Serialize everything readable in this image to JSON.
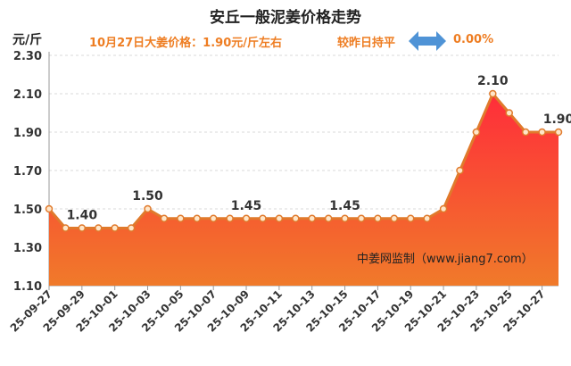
{
  "title": "安丘一般泥姜价格走势",
  "unit": "元/斤",
  "price_line": "10月27日大姜价格：1.90元/斤左右",
  "compare_text": "较昨日持平",
  "change_pct": "0.00%",
  "watermark": "中姜网监制（www.jiang7.com）",
  "colors": {
    "line": "#e07a2c",
    "marker_fill": "#ffe6c8",
    "area_top": "#ff2d3a",
    "area_bottom": "#f07a2a",
    "accent_text": "#ee7d22",
    "arrow": "#4f93d6"
  },
  "chart_data": {
    "type": "area",
    "ylim": [
      1.1,
      2.3
    ],
    "yticks": [
      "1.10",
      "1.30",
      "1.50",
      "1.70",
      "1.90",
      "2.10",
      "2.30"
    ],
    "x_tick_labels": [
      "25-09-27",
      "25-09-29",
      "25-10-01",
      "25-10-03",
      "25-10-05",
      "25-10-07",
      "25-10-09",
      "25-10-11",
      "25-10-13",
      "25-10-15",
      "25-10-17",
      "25-10-19",
      "25-10-21",
      "25-10-23",
      "25-10-25",
      "25-10-27"
    ],
    "values": [
      1.5,
      1.4,
      1.4,
      1.4,
      1.4,
      1.4,
      1.5,
      1.45,
      1.45,
      1.45,
      1.45,
      1.45,
      1.45,
      1.45,
      1.45,
      1.45,
      1.45,
      1.45,
      1.45,
      1.45,
      1.45,
      1.45,
      1.45,
      1.45,
      1.5,
      1.7,
      1.9,
      2.1,
      2.0,
      1.9,
      1.9,
      1.9
    ],
    "data_labels": [
      {
        "index": 2,
        "text": "1.40"
      },
      {
        "index": 6,
        "text": "1.50"
      },
      {
        "index": 12,
        "text": "1.45"
      },
      {
        "index": 18,
        "text": "1.45"
      },
      {
        "index": 27,
        "text": "2.10"
      },
      {
        "index": 31,
        "text": "1.90"
      }
    ],
    "grid": true
  }
}
